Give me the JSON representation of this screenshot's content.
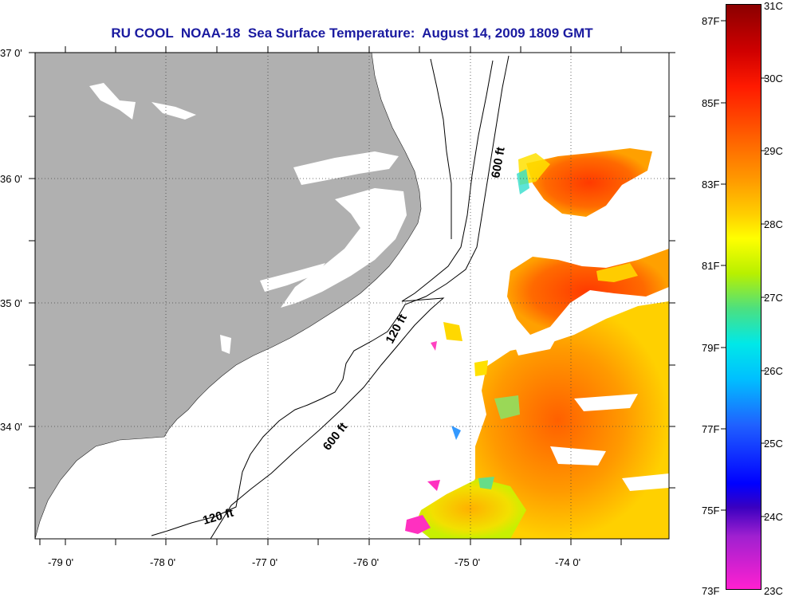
{
  "title": "RU COOL  NOAA-18  Sea Surface Temperature:  August 14, 2009 1809 GMT",
  "lat_labels": [
    "37 0'",
    "36 0'",
    "35 0'",
    "34 0'"
  ],
  "lon_labels": [
    "-79 0'",
    "-78 0'",
    "-77 0'",
    "-76 0'",
    "-75 0'",
    "-74 0'"
  ],
  "contour_labels": [
    "600 ft",
    "120 ft",
    "600 ft",
    "120 ft"
  ],
  "colorbar": {
    "celsius": [
      "31C",
      "30C",
      "29C",
      "28C",
      "27C",
      "26C",
      "25C",
      "24C",
      "23C"
    ],
    "fahrenheit": [
      "87F",
      "85F",
      "83F",
      "81F",
      "79F",
      "77F",
      "75F",
      "73F"
    ]
  },
  "colors": {
    "land": "#b0b0b0",
    "title": "#1a1aa0"
  }
}
